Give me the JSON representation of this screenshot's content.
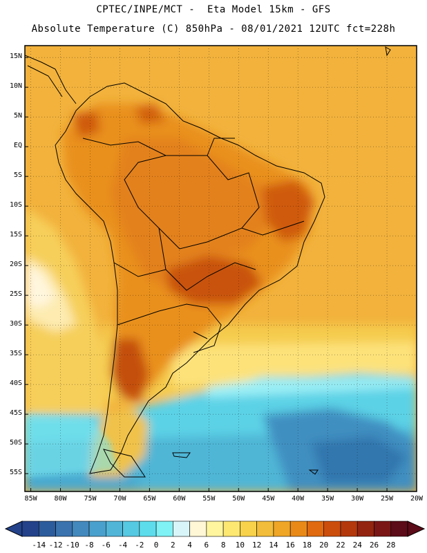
{
  "header": {
    "line1": "CPTEC/INPE/MCT -  Eta Model 15km - GFS",
    "line2": "Absolute Temperature (C) 850hPa - 08/01/2021 12UTC fct=228h"
  },
  "map": {
    "region": "South America",
    "lat_labels": [
      "15N",
      "10N",
      "5N",
      "EQ",
      "5S",
      "10S",
      "15S",
      "20S",
      "25S",
      "30S",
      "35S",
      "40S",
      "45S",
      "50S",
      "55S"
    ],
    "lon_labels": [
      "85W",
      "80W",
      "75W",
      "70W",
      "65W",
      "60W",
      "55W",
      "50W",
      "45W",
      "40W",
      "35W",
      "30W",
      "25W",
      "20W"
    ],
    "lat_range": [
      17,
      -58
    ],
    "lon_range": [
      86,
      20
    ],
    "grid": "dotted"
  },
  "colorbar": {
    "ticks": [
      "-14",
      "-12",
      "-10",
      "-8",
      "-6",
      "-4",
      "-2",
      "0",
      "2",
      "4",
      "6",
      "8",
      "10",
      "12",
      "14",
      "16",
      "18",
      "20",
      "22",
      "24",
      "26",
      "28"
    ],
    "colors": [
      "#23428a",
      "#2d5c9c",
      "#3a73ae",
      "#4389bd",
      "#4aa0cc",
      "#51b5d8",
      "#56c9e2",
      "#5dddec",
      "#7ff2f6",
      "#d8f6fa",
      "#fff7d6",
      "#fff59e",
      "#fde872",
      "#f8d24a",
      "#f2bd3a",
      "#efa626",
      "#e98a18",
      "#df6a10",
      "#cc4e0c",
      "#b3380c",
      "#932410",
      "#7a1616",
      "#5c0b18"
    ],
    "units": "C"
  }
}
